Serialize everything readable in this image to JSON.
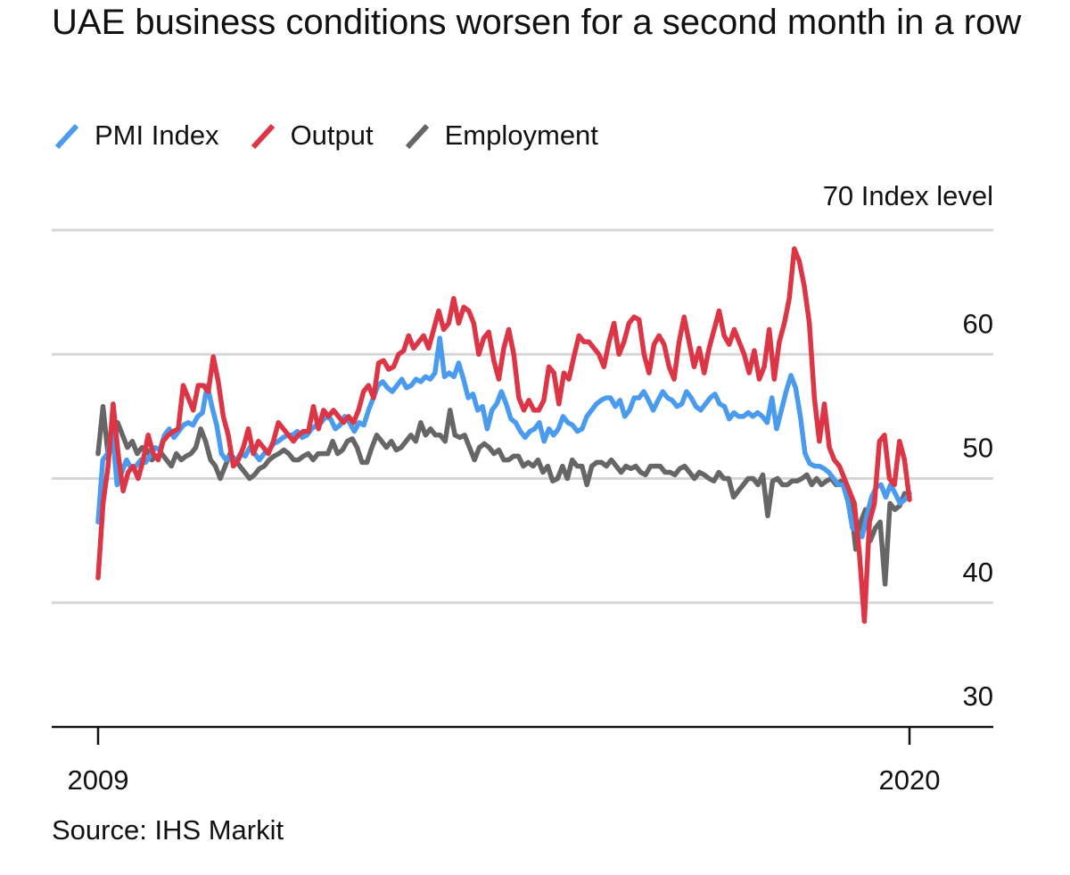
{
  "title": "UAE business conditions worsen for a second month in a row",
  "legend": [
    {
      "label": "PMI Index",
      "color": "#4a9aee"
    },
    {
      "label": "Output",
      "color": "#dc3545"
    },
    {
      "label": "Employment",
      "color": "#666666"
    }
  ],
  "source": "Source: IHS Markit",
  "chart_data": {
    "type": "line",
    "title": "UAE business conditions worsen for a second month in a row",
    "ylabel": "Index level",
    "ylabel_display": "70 Index level",
    "ylim": [
      30,
      70
    ],
    "yticks": [
      30,
      40,
      50,
      60,
      70
    ],
    "ytick_labels": [
      "30",
      "40",
      "50",
      "60"
    ],
    "x_range": [
      2009.0,
      2020.0
    ],
    "x_tick_values": [
      2009,
      2020
    ],
    "x_tick_labels": [
      "2009",
      "2020"
    ],
    "grid": true,
    "x_step": 0.0833,
    "x_start": 2009.0,
    "series": [
      {
        "name": "PMI Index",
        "color": "#4a9aee",
        "values": [
          46.5,
          51.5,
          52.0,
          53.8,
          49.5,
          50.5,
          51.5,
          50.8,
          51.0,
          51.5,
          51.3,
          51.8,
          52.5,
          52.3,
          53.5,
          54.0,
          53.3,
          53.8,
          54.3,
          54.5,
          54.3,
          55.0,
          55.3,
          57.5,
          55.8,
          54.3,
          52.0,
          51.5,
          51.8,
          51.3,
          52.0,
          51.8,
          52.5,
          52.0,
          51.5,
          52.0,
          52.3,
          52.8,
          53.0,
          53.3,
          53.5,
          53.5,
          53.8,
          53.3,
          53.5,
          54.0,
          54.3,
          54.5,
          55.0,
          54.8,
          54.0,
          54.3,
          55.0,
          54.5,
          53.8,
          54.5,
          54.3,
          55.5,
          56.5,
          57.5,
          57.8,
          57.3,
          57.0,
          57.5,
          58.0,
          57.3,
          57.5,
          58.0,
          57.8,
          58.2,
          58.0,
          58.5,
          61.3,
          58.2,
          58.5,
          58.2,
          59.3,
          58.0,
          56.5,
          56.8,
          55.5,
          55.8,
          54.0,
          55.5,
          56.0,
          57.0,
          56.0,
          54.8,
          54.5,
          53.8,
          53.3,
          53.8,
          54.0,
          54.5,
          53.0,
          54.0,
          53.5,
          54.0,
          55.0,
          54.5,
          54.3,
          53.8,
          54.0,
          55.0,
          55.5,
          56.0,
          56.3,
          56.5,
          56.5,
          55.8,
          56.3,
          55.0,
          55.5,
          56.5,
          56.5,
          57.0,
          56.3,
          55.5,
          56.3,
          57.0,
          56.5,
          56.3,
          55.8,
          56.0,
          57.0,
          56.5,
          55.8,
          55.5,
          56.0,
          56.5,
          56.8,
          56.0,
          55.8,
          54.8,
          55.3,
          55.0,
          55.0,
          55.3,
          55.0,
          55.3,
          55.0,
          54.5,
          56.5,
          54.0,
          55.5,
          57.0,
          58.3,
          57.3,
          55.0,
          52.0,
          51.2,
          51.0,
          51.0,
          50.8,
          50.5,
          50.0,
          49.5,
          49.5,
          48.2,
          46.0,
          45.8,
          45.3,
          47.0,
          48.5,
          49.3,
          49.5,
          48.5,
          49.5,
          48.8,
          48.0,
          48.3,
          48.8
        ]
      },
      {
        "name": "Output",
        "color": "#dc3545",
        "values": [
          42.0,
          48.0,
          51.0,
          56.0,
          52.0,
          49.0,
          50.5,
          51.0,
          50.0,
          51.5,
          53.5,
          52.0,
          51.5,
          53.0,
          53.5,
          53.8,
          54.0,
          57.5,
          56.5,
          55.5,
          57.5,
          57.5,
          57.0,
          59.8,
          57.8,
          55.0,
          53.5,
          51.0,
          51.5,
          52.5,
          54.0,
          52.0,
          53.0,
          52.5,
          52.0,
          53.0,
          54.5,
          54.0,
          53.5,
          53.0,
          53.5,
          53.8,
          53.8,
          55.8,
          54.0,
          55.5,
          55.0,
          55.5,
          55.0,
          54.5,
          55.0,
          54.5,
          55.5,
          57.0,
          57.5,
          56.5,
          59.3,
          59.5,
          58.8,
          59.0,
          60.0,
          60.3,
          61.5,
          60.5,
          61.0,
          61.5,
          60.5,
          62.0,
          63.5,
          62.0,
          62.5,
          64.5,
          62.5,
          63.8,
          63.5,
          62.5,
          60.0,
          61.3,
          61.8,
          59.5,
          58.0,
          60.5,
          62.0,
          60.0,
          56.5,
          55.5,
          56.3,
          55.5,
          55.5,
          56.3,
          59.0,
          58.5,
          56.0,
          58.5,
          58.0,
          59.8,
          61.5,
          61.0,
          61.0,
          60.5,
          60.0,
          59.0,
          61.0,
          62.5,
          60.0,
          61.0,
          62.5,
          63.0,
          62.8,
          60.0,
          58.5,
          60.8,
          61.5,
          60.8,
          59.0,
          58.0,
          61.0,
          63.0,
          61.0,
          59.0,
          60.5,
          58.5,
          60.5,
          62.0,
          63.5,
          61.5,
          60.8,
          62.0,
          61.0,
          60.0,
          58.5,
          60.3,
          58.0,
          59.0,
          62.0,
          58.0,
          61.0,
          62.5,
          64.5,
          68.5,
          67.5,
          65.5,
          62.5,
          56.5,
          53.0,
          56.0,
          52.5,
          51.5,
          51.0,
          50.0,
          49.0,
          48.0,
          44.0,
          38.5,
          46.5,
          48.0,
          53.0,
          53.5,
          50.0,
          49.5,
          53.0,
          51.5,
          48.3
        ]
      },
      {
        "name": "Employment",
        "color": "#666666",
        "values": [
          52.0,
          55.8,
          52.0,
          52.5,
          54.5,
          53.5,
          52.5,
          53.0,
          52.0,
          52.5,
          52.3,
          51.5,
          51.8,
          52.0,
          51.5,
          51.0,
          52.0,
          51.5,
          51.8,
          52.0,
          52.5,
          54.0,
          53.0,
          51.5,
          51.0,
          50.0,
          51.0,
          52.0,
          51.5,
          51.0,
          50.5,
          50.0,
          50.3,
          50.8,
          51.0,
          51.5,
          51.8,
          52.0,
          52.3,
          52.0,
          51.5,
          51.5,
          51.8,
          52.0,
          51.5,
          52.0,
          52.0,
          52.0,
          53.0,
          52.0,
          52.3,
          53.0,
          53.2,
          52.5,
          51.3,
          51.3,
          52.5,
          53.5,
          53.0,
          52.5,
          53.0,
          52.3,
          52.5,
          53.0,
          53.5,
          53.0,
          54.5,
          53.5,
          54.0,
          53.5,
          53.5,
          53.0,
          55.5,
          53.5,
          53.3,
          53.5,
          52.5,
          51.5,
          52.5,
          52.8,
          52.5,
          52.0,
          52.3,
          51.5,
          51.5,
          51.8,
          51.8,
          51.0,
          51.3,
          51.0,
          51.5,
          50.5,
          51.0,
          49.8,
          50.0,
          51.0,
          50.0,
          51.5,
          51.0,
          51.0,
          49.5,
          51.0,
          51.3,
          51.3,
          51.0,
          51.5,
          51.0,
          50.5,
          51.0,
          50.8,
          51.0,
          50.5,
          50.3,
          51.0,
          51.0,
          51.0,
          50.5,
          50.5,
          50.3,
          50.8,
          51.0,
          50.5,
          50.0,
          50.5,
          50.3,
          50.0,
          49.8,
          50.5,
          50.0,
          50.0,
          48.5,
          49.0,
          49.5,
          50.0,
          50.0,
          49.5,
          50.3,
          47.0,
          49.8,
          50.0,
          49.5,
          49.5,
          49.8,
          49.8,
          50.0,
          50.3,
          49.5,
          50.0,
          49.5,
          49.8,
          50.0,
          49.5,
          49.8,
          49.0,
          48.0,
          44.3,
          46.5,
          47.5,
          45.0,
          46.0,
          46.5,
          41.5,
          48.0,
          47.5,
          47.8,
          48.8,
          48.5
        ]
      }
    ]
  }
}
